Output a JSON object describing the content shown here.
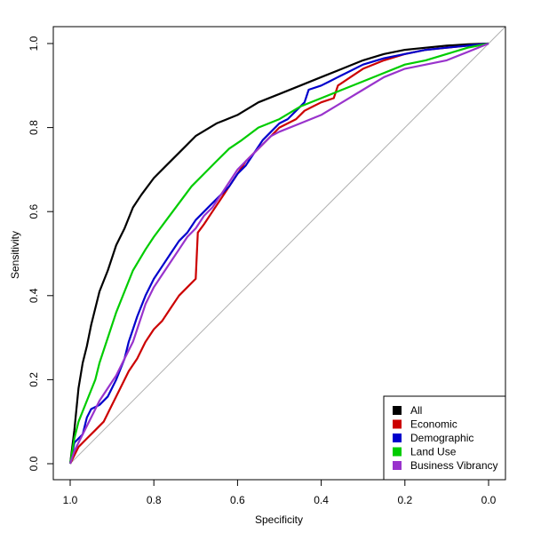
{
  "chart_data": {
    "type": "line",
    "title": "",
    "xlabel": "Specificity",
    "ylabel": "Sensitivity",
    "xlim": [
      1.0,
      0.0
    ],
    "ylim": [
      0.0,
      1.0
    ],
    "x_ticks": [
      "1.0",
      "0.8",
      "0.6",
      "0.4",
      "0.2",
      "0.0"
    ],
    "y_ticks": [
      "0.0",
      "0.2",
      "0.4",
      "0.6",
      "0.8",
      "1.0"
    ],
    "x_tick_values": [
      1.0,
      0.8,
      0.6,
      0.4,
      0.2,
      0.0
    ],
    "y_tick_values": [
      0.0,
      0.2,
      0.4,
      0.6,
      0.8,
      1.0
    ],
    "grid": false,
    "legend_position": "bottom-right",
    "reference_line": {
      "from": [
        1.0,
        0.0
      ],
      "to": [
        0.0,
        1.0
      ],
      "color": "#b0b0b0"
    },
    "series": [
      {
        "name": "All",
        "color": "#000000",
        "points": [
          [
            1.0,
            0.0
          ],
          [
            0.99,
            0.08
          ],
          [
            0.98,
            0.18
          ],
          [
            0.97,
            0.24
          ],
          [
            0.96,
            0.28
          ],
          [
            0.95,
            0.33
          ],
          [
            0.94,
            0.37
          ],
          [
            0.93,
            0.41
          ],
          [
            0.91,
            0.46
          ],
          [
            0.89,
            0.52
          ],
          [
            0.87,
            0.56
          ],
          [
            0.85,
            0.61
          ],
          [
            0.83,
            0.64
          ],
          [
            0.8,
            0.68
          ],
          [
            0.77,
            0.71
          ],
          [
            0.73,
            0.75
          ],
          [
            0.7,
            0.78
          ],
          [
            0.65,
            0.81
          ],
          [
            0.6,
            0.83
          ],
          [
            0.55,
            0.86
          ],
          [
            0.5,
            0.88
          ],
          [
            0.45,
            0.9
          ],
          [
            0.4,
            0.92
          ],
          [
            0.35,
            0.94
          ],
          [
            0.3,
            0.96
          ],
          [
            0.25,
            0.975
          ],
          [
            0.2,
            0.985
          ],
          [
            0.15,
            0.99
          ],
          [
            0.1,
            0.995
          ],
          [
            0.05,
            0.998
          ],
          [
            0.0,
            1.0
          ]
        ]
      },
      {
        "name": "Economic",
        "color": "#cc0000",
        "points": [
          [
            1.0,
            0.0
          ],
          [
            0.98,
            0.04
          ],
          [
            0.96,
            0.06
          ],
          [
            0.94,
            0.08
          ],
          [
            0.92,
            0.1
          ],
          [
            0.9,
            0.14
          ],
          [
            0.88,
            0.18
          ],
          [
            0.86,
            0.22
          ],
          [
            0.84,
            0.25
          ],
          [
            0.82,
            0.29
          ],
          [
            0.8,
            0.32
          ],
          [
            0.78,
            0.34
          ],
          [
            0.76,
            0.37
          ],
          [
            0.74,
            0.4
          ],
          [
            0.72,
            0.42
          ],
          [
            0.7,
            0.44
          ],
          [
            0.695,
            0.55
          ],
          [
            0.68,
            0.57
          ],
          [
            0.66,
            0.6
          ],
          [
            0.64,
            0.63
          ],
          [
            0.62,
            0.66
          ],
          [
            0.6,
            0.69
          ],
          [
            0.58,
            0.72
          ],
          [
            0.55,
            0.75
          ],
          [
            0.52,
            0.78
          ],
          [
            0.5,
            0.8
          ],
          [
            0.48,
            0.81
          ],
          [
            0.46,
            0.82
          ],
          [
            0.44,
            0.84
          ],
          [
            0.42,
            0.85
          ],
          [
            0.4,
            0.86
          ],
          [
            0.37,
            0.87
          ],
          [
            0.36,
            0.9
          ],
          [
            0.33,
            0.92
          ],
          [
            0.3,
            0.94
          ],
          [
            0.25,
            0.96
          ],
          [
            0.2,
            0.975
          ],
          [
            0.15,
            0.985
          ],
          [
            0.1,
            0.99
          ],
          [
            0.05,
            0.995
          ],
          [
            0.0,
            1.0
          ]
        ]
      },
      {
        "name": "Demographic",
        "color": "#0000cc",
        "points": [
          [
            1.0,
            0.0
          ],
          [
            0.99,
            0.05
          ],
          [
            0.97,
            0.07
          ],
          [
            0.96,
            0.11
          ],
          [
            0.95,
            0.13
          ],
          [
            0.93,
            0.14
          ],
          [
            0.91,
            0.16
          ],
          [
            0.89,
            0.2
          ],
          [
            0.87,
            0.25
          ],
          [
            0.86,
            0.29
          ],
          [
            0.85,
            0.32
          ],
          [
            0.84,
            0.35
          ],
          [
            0.82,
            0.4
          ],
          [
            0.8,
            0.44
          ],
          [
            0.78,
            0.47
          ],
          [
            0.76,
            0.5
          ],
          [
            0.74,
            0.53
          ],
          [
            0.72,
            0.55
          ],
          [
            0.7,
            0.58
          ],
          [
            0.68,
            0.6
          ],
          [
            0.66,
            0.62
          ],
          [
            0.64,
            0.64
          ],
          [
            0.62,
            0.66
          ],
          [
            0.6,
            0.69
          ],
          [
            0.58,
            0.71
          ],
          [
            0.56,
            0.74
          ],
          [
            0.54,
            0.77
          ],
          [
            0.52,
            0.79
          ],
          [
            0.5,
            0.81
          ],
          [
            0.48,
            0.82
          ],
          [
            0.46,
            0.84
          ],
          [
            0.44,
            0.86
          ],
          [
            0.43,
            0.89
          ],
          [
            0.4,
            0.9
          ],
          [
            0.38,
            0.91
          ],
          [
            0.36,
            0.92
          ],
          [
            0.34,
            0.93
          ],
          [
            0.3,
            0.95
          ],
          [
            0.25,
            0.965
          ],
          [
            0.2,
            0.975
          ],
          [
            0.15,
            0.985
          ],
          [
            0.1,
            0.99
          ],
          [
            0.05,
            0.995
          ],
          [
            0.0,
            1.0
          ]
        ]
      },
      {
        "name": "Land Use",
        "color": "#00cc00",
        "points": [
          [
            1.0,
            0.0
          ],
          [
            0.99,
            0.06
          ],
          [
            0.98,
            0.1
          ],
          [
            0.96,
            0.15
          ],
          [
            0.94,
            0.2
          ],
          [
            0.93,
            0.24
          ],
          [
            0.91,
            0.3
          ],
          [
            0.89,
            0.36
          ],
          [
            0.87,
            0.41
          ],
          [
            0.85,
            0.46
          ],
          [
            0.82,
            0.51
          ],
          [
            0.8,
            0.54
          ],
          [
            0.77,
            0.58
          ],
          [
            0.74,
            0.62
          ],
          [
            0.71,
            0.66
          ],
          [
            0.68,
            0.69
          ],
          [
            0.65,
            0.72
          ],
          [
            0.62,
            0.75
          ],
          [
            0.59,
            0.77
          ],
          [
            0.55,
            0.8
          ],
          [
            0.5,
            0.82
          ],
          [
            0.45,
            0.85
          ],
          [
            0.4,
            0.87
          ],
          [
            0.35,
            0.89
          ],
          [
            0.3,
            0.91
          ],
          [
            0.25,
            0.93
          ],
          [
            0.2,
            0.95
          ],
          [
            0.15,
            0.96
          ],
          [
            0.1,
            0.975
          ],
          [
            0.05,
            0.99
          ],
          [
            0.0,
            1.0
          ]
        ]
      },
      {
        "name": "Business Vibrancy",
        "color": "#9933cc",
        "points": [
          [
            1.0,
            0.0
          ],
          [
            0.99,
            0.03
          ],
          [
            0.97,
            0.07
          ],
          [
            0.95,
            0.11
          ],
          [
            0.93,
            0.15
          ],
          [
            0.91,
            0.18
          ],
          [
            0.89,
            0.21
          ],
          [
            0.87,
            0.25
          ],
          [
            0.85,
            0.29
          ],
          [
            0.84,
            0.32
          ],
          [
            0.82,
            0.38
          ],
          [
            0.8,
            0.42
          ],
          [
            0.78,
            0.45
          ],
          [
            0.76,
            0.48
          ],
          [
            0.74,
            0.51
          ],
          [
            0.72,
            0.54
          ],
          [
            0.7,
            0.56
          ],
          [
            0.68,
            0.59
          ],
          [
            0.66,
            0.61
          ],
          [
            0.64,
            0.64
          ],
          [
            0.62,
            0.67
          ],
          [
            0.6,
            0.7
          ],
          [
            0.58,
            0.72
          ],
          [
            0.55,
            0.75
          ],
          [
            0.52,
            0.78
          ],
          [
            0.5,
            0.79
          ],
          [
            0.45,
            0.81
          ],
          [
            0.4,
            0.83
          ],
          [
            0.35,
            0.86
          ],
          [
            0.3,
            0.89
          ],
          [
            0.25,
            0.92
          ],
          [
            0.2,
            0.94
          ],
          [
            0.15,
            0.95
          ],
          [
            0.1,
            0.96
          ],
          [
            0.05,
            0.98
          ],
          [
            0.0,
            1.0
          ]
        ]
      }
    ]
  }
}
